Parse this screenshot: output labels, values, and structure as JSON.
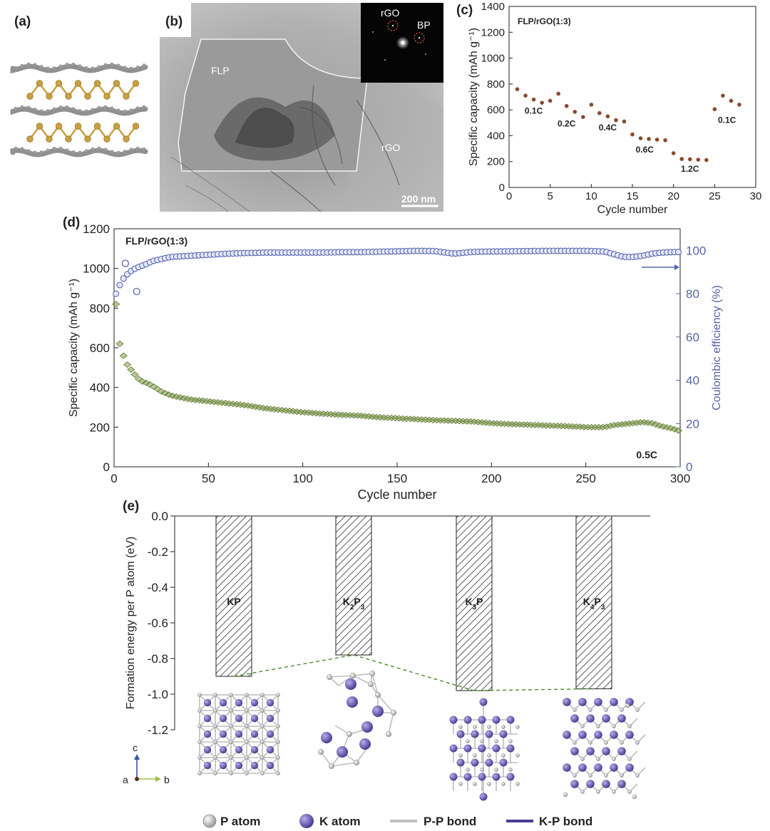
{
  "panels": {
    "a": {
      "letter": "(a)"
    },
    "b": {
      "letter": "(b)",
      "labels": {
        "flp": "FLP",
        "rgo": "rGO",
        "inset_rgo": "rGO",
        "inset_bp": "BP",
        "scale_bar": "200 nm"
      }
    },
    "c": {
      "letter": "(c)"
    },
    "d": {
      "letter": "(d)"
    },
    "e": {
      "letter": "(e)"
    }
  },
  "colors": {
    "dots": "#8a4a2e",
    "capacity_marker": "#5f7a2e",
    "efficiency_marker": "#4a5aa8",
    "right_axis": "#5565a8",
    "p_atom": "#bbbbbb",
    "k_atom": "#6a5cad",
    "graphene": "#7c7c7c",
    "phosphorene": "#c9a043",
    "hatch": "#333333",
    "dashed_green": "#4c8a2c"
  },
  "legend": {
    "p_atom": "P atom",
    "k_atom": "K atom",
    "pp_bond": "P-P bond",
    "kp_bond": "K-P bond"
  },
  "axes_triad": {
    "c": "c",
    "a": "a",
    "b": "b"
  },
  "chart_data": [
    {
      "id": "c",
      "type": "scatter",
      "title": "FLP/rGO(1:3)",
      "xlabel": "Cycle number",
      "ylabel": "Specific capacity (mAh g⁻¹)",
      "xlim": [
        0,
        30
      ],
      "ylim": [
        0,
        1400
      ],
      "xticks": [
        "0",
        "5",
        "10",
        "15",
        "20",
        "25",
        "30"
      ],
      "yticks": [
        "0",
        "200",
        "400",
        "600",
        "800",
        "1000",
        "1200",
        "1400"
      ],
      "x": [
        1,
        2,
        3,
        4,
        5,
        6,
        7,
        8,
        9,
        10,
        11,
        12,
        13,
        14,
        15,
        16,
        17,
        18,
        19,
        20,
        21,
        22,
        23,
        24,
        25,
        26,
        27,
        28
      ],
      "y": [
        760,
        710,
        680,
        655,
        670,
        725,
        630,
        585,
        545,
        640,
        575,
        550,
        520,
        510,
        410,
        380,
        375,
        370,
        365,
        265,
        220,
        218,
        215,
        212,
        605,
        710,
        670,
        640
      ],
      "annotations": [
        {
          "text": "0.1C",
          "x": 3,
          "y": 570
        },
        {
          "text": "0.2C",
          "x": 7,
          "y": 470
        },
        {
          "text": "0.4C",
          "x": 12,
          "y": 440
        },
        {
          "text": "0.6C",
          "x": 16.5,
          "y": 270
        },
        {
          "text": "1.2C",
          "x": 22,
          "y": 120
        },
        {
          "text": "0.1C",
          "x": 26.5,
          "y": 500
        }
      ]
    },
    {
      "id": "d",
      "type": "scatter",
      "title": "FLP/rGO(1:3)",
      "xlabel": "Cycle number",
      "ylabel": "Specific capacity (mAh g⁻¹)",
      "y2label": "Coulombic efficiency (%)",
      "xlim": [
        0,
        300
      ],
      "ylim": [
        0,
        1200
      ],
      "y2lim": [
        0,
        110
      ],
      "xticks": [
        "0",
        "50",
        "100",
        "150",
        "200",
        "250",
        "300"
      ],
      "yticks": [
        "0",
        "200",
        "400",
        "600",
        "800",
        "1000",
        "1200"
      ],
      "y2ticks": [
        "0",
        "20",
        "40",
        "60",
        "80",
        "100"
      ],
      "rate_label": "0.5C",
      "series": [
        {
          "name": "Specific capacity",
          "x": [
            1,
            2,
            3,
            4,
            5,
            6,
            8,
            10,
            12,
            15,
            18,
            20,
            25,
            30,
            40,
            50,
            60,
            70,
            80,
            90,
            100,
            110,
            120,
            130,
            140,
            150,
            160,
            170,
            180,
            190,
            200,
            210,
            220,
            230,
            240,
            250,
            260,
            265,
            270,
            275,
            280,
            285,
            290,
            295,
            300
          ],
          "y": [
            820,
            660,
            620,
            590,
            560,
            530,
            500,
            480,
            450,
            430,
            420,
            410,
            380,
            360,
            340,
            330,
            320,
            310,
            295,
            285,
            275,
            268,
            262,
            258,
            250,
            245,
            240,
            235,
            232,
            228,
            220,
            215,
            212,
            208,
            205,
            200,
            200,
            210,
            215,
            220,
            225,
            220,
            205,
            195,
            180
          ]
        },
        {
          "name": "Coulombic efficiency",
          "x": [
            1,
            2,
            3,
            4,
            5,
            6,
            8,
            10,
            12,
            15,
            18,
            20,
            25,
            30,
            40,
            50,
            60,
            70,
            80,
            90,
            100,
            110,
            120,
            130,
            140,
            150,
            160,
            170,
            180,
            190,
            200,
            210,
            220,
            230,
            240,
            250,
            260,
            265,
            270,
            275,
            280,
            285,
            290,
            295,
            300
          ],
          "y": [
            80,
            82,
            84,
            86,
            87,
            88,
            90,
            91,
            92,
            93,
            94,
            95,
            96,
            97,
            97.5,
            98,
            98.5,
            98.8,
            99,
            99,
            99,
            99,
            99.2,
            99.2,
            99.4,
            99.6,
            99.8,
            99.7,
            98.5,
            99.3,
            99.5,
            99.6,
            99.7,
            99.8,
            99.8,
            99.8,
            99.5,
            98.2,
            97,
            97,
            97.5,
            98.5,
            99,
            99.2,
            99.3
          ]
        },
        {
          "name": "Outliers",
          "x": [
            6,
            12
          ],
          "y2": [
            94,
            81
          ]
        }
      ]
    },
    {
      "id": "e",
      "type": "bar",
      "ylabel": "Formation energy per P atom (eV)",
      "ylim": [
        -1.2,
        0
      ],
      "yticks": [
        "0.0",
        "-0.2",
        "-0.4",
        "-0.6",
        "-0.8",
        "-1.0",
        "-1.2"
      ],
      "categories": [
        "KP",
        "K2P3",
        "K3P",
        "K4P3"
      ],
      "values": [
        -0.9,
        -0.78,
        -0.98,
        -0.97
      ],
      "bar_labels": [
        {
          "main": "KP",
          "parts": []
        },
        {
          "main": "K",
          "parts": [
            {
              "t": "K",
              "s": false
            },
            {
              "t": "2",
              "s": true
            },
            {
              "t": "P",
              "s": false
            },
            {
              "t": "3",
              "s": true
            }
          ]
        },
        {
          "main": "K",
          "parts": [
            {
              "t": "K",
              "s": false
            },
            {
              "t": "3",
              "s": true
            },
            {
              "t": "P",
              "s": false
            }
          ]
        },
        {
          "main": "K",
          "parts": [
            {
              "t": "K",
              "s": false
            },
            {
              "t": "4",
              "s": true
            },
            {
              "t": "P",
              "s": false
            },
            {
              "t": "3",
              "s": true
            }
          ]
        }
      ]
    }
  ]
}
